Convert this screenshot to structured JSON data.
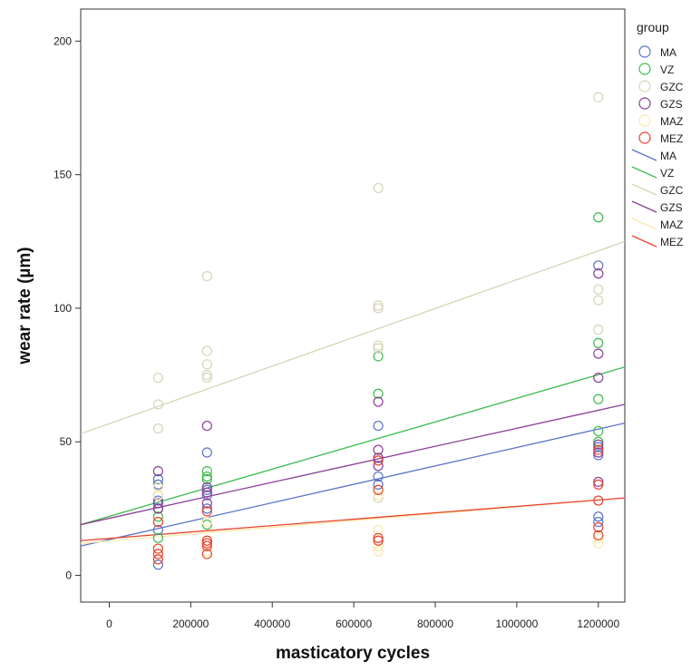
{
  "chart_data": {
    "type": "scatter",
    "title": "",
    "xlabel": "masticatory cycles",
    "ylabel": "wear rate (µm)",
    "xlim": [
      -70000,
      1265000
    ],
    "ylim": [
      -10,
      212
    ],
    "x_ticks": [
      0,
      200000,
      400000,
      600000,
      800000,
      1000000,
      1200000
    ],
    "x_tick_labels": [
      "0",
      "200000",
      "400000",
      "600000",
      "800000",
      "1000000",
      "1200000"
    ],
    "y_ticks": [
      0,
      50,
      100,
      150,
      200
    ],
    "y_tick_labels": [
      "0",
      "50",
      "100",
      "150",
      "200"
    ],
    "grid": false,
    "legend": {
      "title": "group",
      "placement": "right",
      "marker_entries": [
        "MA",
        "VZ",
        "GZC",
        "GZS",
        "MAZ",
        "MEZ"
      ],
      "line_entries": [
        "MA",
        "VZ",
        "GZC",
        "GZS",
        "MAZ",
        "MEZ"
      ]
    },
    "series": [
      {
        "name": "MA",
        "color": "#5a73c8",
        "points": [
          [
            120000,
            4
          ],
          [
            120000,
            17
          ],
          [
            120000,
            25
          ],
          [
            120000,
            28
          ],
          [
            120000,
            30
          ],
          [
            120000,
            34
          ],
          [
            120000,
            36
          ],
          [
            240000,
            25
          ],
          [
            240000,
            30
          ],
          [
            240000,
            32
          ],
          [
            240000,
            46
          ],
          [
            660000,
            34
          ],
          [
            660000,
            37
          ],
          [
            660000,
            56
          ],
          [
            1200000,
            20
          ],
          [
            1200000,
            22
          ],
          [
            1200000,
            45
          ],
          [
            1200000,
            48
          ],
          [
            1200000,
            116
          ]
        ],
        "fit": [
          [
            -70000,
            11
          ],
          [
            1265000,
            57
          ]
        ]
      },
      {
        "name": "VZ",
        "color": "#3dba4e",
        "points": [
          [
            120000,
            14
          ],
          [
            120000,
            22
          ],
          [
            120000,
            25
          ],
          [
            240000,
            19
          ],
          [
            240000,
            36
          ],
          [
            240000,
            37
          ],
          [
            240000,
            39
          ],
          [
            660000,
            44
          ],
          [
            660000,
            68
          ],
          [
            660000,
            82
          ],
          [
            1200000,
            50
          ],
          [
            1200000,
            54
          ],
          [
            1200000,
            66
          ],
          [
            1200000,
            87
          ],
          [
            1200000,
            134
          ]
        ],
        "fit": [
          [
            -70000,
            19
          ],
          [
            1265000,
            78
          ]
        ]
      },
      {
        "name": "GZC",
        "color": "#d7d4b8",
        "points": [
          [
            120000,
            33
          ],
          [
            120000,
            55
          ],
          [
            120000,
            64
          ],
          [
            120000,
            74
          ],
          [
            240000,
            74
          ],
          [
            240000,
            75
          ],
          [
            240000,
            79
          ],
          [
            240000,
            84
          ],
          [
            240000,
            112
          ],
          [
            660000,
            29
          ],
          [
            660000,
            85
          ],
          [
            660000,
            86
          ],
          [
            660000,
            100
          ],
          [
            660000,
            101
          ],
          [
            660000,
            145
          ],
          [
            1200000,
            92
          ],
          [
            1200000,
            103
          ],
          [
            1200000,
            107
          ],
          [
            1200000,
            113
          ],
          [
            1200000,
            179
          ]
        ],
        "fit": [
          [
            -70000,
            53
          ],
          [
            1265000,
            125
          ]
        ]
      },
      {
        "name": "GZS",
        "color": "#8a3c96",
        "points": [
          [
            120000,
            25
          ],
          [
            120000,
            27
          ],
          [
            120000,
            39
          ],
          [
            240000,
            27
          ],
          [
            240000,
            31
          ],
          [
            240000,
            33
          ],
          [
            240000,
            56
          ],
          [
            660000,
            41
          ],
          [
            660000,
            44
          ],
          [
            660000,
            47
          ],
          [
            660000,
            65
          ],
          [
            1200000,
            35
          ],
          [
            1200000,
            46
          ],
          [
            1200000,
            49
          ],
          [
            1200000,
            74
          ],
          [
            1200000,
            83
          ],
          [
            1200000,
            113
          ]
        ],
        "fit": [
          [
            -70000,
            19
          ],
          [
            1265000,
            64
          ]
        ]
      },
      {
        "name": "MAZ",
        "color": "#fbe8a9",
        "points": [
          [
            120000,
            8
          ],
          [
            120000,
            10
          ],
          [
            120000,
            20
          ],
          [
            120000,
            30
          ],
          [
            120000,
            33
          ],
          [
            240000,
            9
          ],
          [
            240000,
            13
          ],
          [
            240000,
            20
          ],
          [
            660000,
            9
          ],
          [
            660000,
            11
          ],
          [
            660000,
            17
          ],
          [
            660000,
            30
          ],
          [
            1200000,
            12
          ],
          [
            1200000,
            14
          ],
          [
            1200000,
            28
          ]
        ],
        "fit": [
          [
            -70000,
            12
          ],
          [
            1265000,
            29
          ]
        ]
      },
      {
        "name": "MEZ",
        "color": "#e8432e",
        "points": [
          [
            120000,
            6
          ],
          [
            120000,
            8
          ],
          [
            120000,
            10
          ],
          [
            120000,
            20
          ],
          [
            240000,
            8
          ],
          [
            240000,
            11
          ],
          [
            240000,
            12
          ],
          [
            240000,
            13
          ],
          [
            240000,
            24
          ],
          [
            660000,
            13
          ],
          [
            660000,
            14
          ],
          [
            660000,
            32
          ],
          [
            660000,
            43
          ],
          [
            1200000,
            15
          ],
          [
            1200000,
            18
          ],
          [
            1200000,
            28
          ],
          [
            1200000,
            34
          ],
          [
            1200000,
            47
          ]
        ],
        "fit": [
          [
            -70000,
            13
          ],
          [
            1265000,
            29
          ]
        ]
      }
    ]
  }
}
